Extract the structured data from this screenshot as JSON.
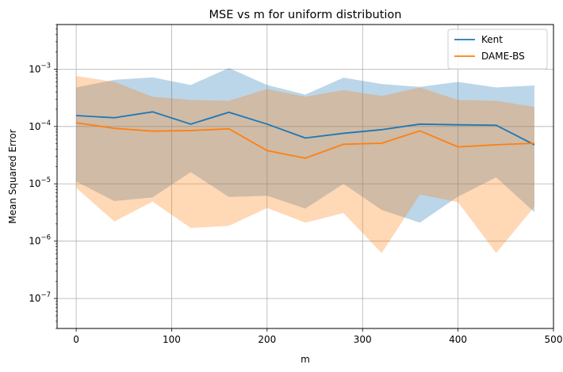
{
  "chart_data": {
    "type": "line",
    "title": "MSE vs m for uniform distribution",
    "xlabel": "m",
    "ylabel": "Mean Squared Error",
    "xlim": [
      -20,
      500
    ],
    "ylim": [
      3e-08,
      0.006
    ],
    "yscale": "log",
    "grid": true,
    "legend_position": "upper right",
    "x": [
      0,
      40,
      80,
      120,
      160,
      200,
      240,
      280,
      320,
      360,
      400,
      440,
      480
    ],
    "x_ticks": [
      {
        "value": 0,
        "label": "0"
      },
      {
        "value": 100,
        "label": "100"
      },
      {
        "value": 200,
        "label": "200"
      },
      {
        "value": 300,
        "label": "300"
      },
      {
        "value": 400,
        "label": "400"
      },
      {
        "value": 500,
        "label": "500"
      }
    ],
    "y_ticks": [
      {
        "value": 1e-07,
        "base": "10",
        "exp": "−7"
      },
      {
        "value": 1e-06,
        "base": "10",
        "exp": "−6"
      },
      {
        "value": 1e-05,
        "base": "10",
        "exp": "−5"
      },
      {
        "value": 0.0001,
        "base": "10",
        "exp": "−4"
      },
      {
        "value": 0.001,
        "base": "10",
        "exp": "−3"
      }
    ],
    "series": [
      {
        "name": "Kent",
        "color": "#1f77b4",
        "values": [
          0.000155,
          0.000142,
          0.00018,
          0.00011,
          0.000177,
          0.00011,
          6.3e-05,
          7.6e-05,
          8.8e-05,
          0.00011,
          0.000107,
          0.000105,
          4.8e-05
        ],
        "band_upper": [
          0.00048,
          0.00065,
          0.00072,
          0.00053,
          0.00105,
          0.00053,
          0.00036,
          0.00071,
          0.00055,
          0.00049,
          0.0006,
          0.00048,
          0.00052
        ],
        "band_lower": [
          1.1e-05,
          5e-06,
          5.8e-06,
          1.6e-05,
          5.9e-06,
          6.2e-06,
          3.7e-06,
          1e-05,
          3.5e-06,
          2.1e-06,
          6e-06,
          1.3e-05,
          3.2e-06
        ]
      },
      {
        "name": "DAME-BS",
        "color": "#ff7f0e",
        "values": [
          0.000116,
          9.3e-05,
          8.3e-05,
          8.5e-05,
          9.1e-05,
          3.8e-05,
          2.8e-05,
          4.9e-05,
          5.1e-05,
          8.4e-05,
          4.4e-05,
          4.8e-05,
          5.1e-05
        ],
        "band_upper": [
          0.00076,
          0.0006,
          0.00033,
          0.00029,
          0.00028,
          0.00045,
          0.00033,
          0.00043,
          0.00034,
          0.00048,
          0.00029,
          0.00028,
          0.00022
        ],
        "band_lower": [
          8.5e-06,
          2.2e-06,
          4.9e-06,
          1.7e-06,
          1.85e-06,
          3.8e-06,
          2.1e-06,
          3.1e-06,
          6.2e-07,
          6.5e-06,
          4.8e-06,
          6.2e-07,
          4e-06
        ]
      }
    ]
  }
}
